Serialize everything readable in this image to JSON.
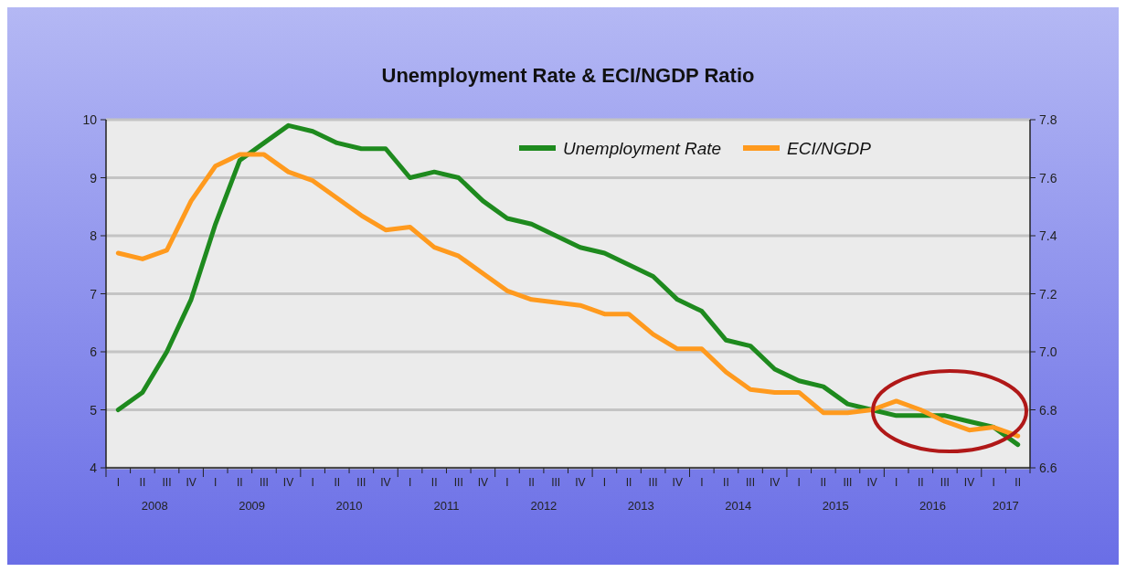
{
  "chart_data": {
    "type": "line",
    "title": "Unemployment Rate & ECI/NGDP Ratio",
    "grid": "y",
    "legend": "top right",
    "categories": [
      "I",
      "II",
      "III",
      "IV",
      "I",
      "II",
      "III",
      "IV",
      "I",
      "II",
      "III",
      "IV",
      "I",
      "II",
      "III",
      "IV",
      "I",
      "II",
      "III",
      "IV",
      "I",
      "II",
      "III",
      "IV",
      "I",
      "II",
      "III",
      "IV",
      "I",
      "II",
      "III",
      "IV",
      "I",
      "II",
      "III",
      "IV",
      "I",
      "II"
    ],
    "annotations": [
      "2008",
      "2009",
      "2010",
      "2011",
      "2012",
      "2013",
      "2014",
      "2015",
      "2016",
      "2017"
    ],
    "ylim": [
      4,
      10
    ],
    "yticks": [
      4,
      5,
      6,
      7,
      8,
      9,
      10
    ],
    "y2lim": [
      6.6,
      7.8
    ],
    "y2ticks": [
      {
        "value": 6.6,
        "label": "6.6"
      },
      {
        "value": 6.8,
        "label": "6.8"
      },
      {
        "value": 7,
        "label": "7.0"
      },
      {
        "value": 7.2,
        "label": "7.2"
      },
      {
        "value": 7.4,
        "label": "7.4"
      },
      {
        "value": 7.6,
        "label": "7.6"
      },
      {
        "value": 7.8,
        "label": "7.8"
      }
    ],
    "series": [
      {
        "name": "Unemployment Rate",
        "color": "#1e8a1e",
        "values": [
          5.0,
          5.3,
          6.0,
          6.9,
          8.2,
          9.3,
          9.6,
          9.9,
          9.8,
          9.6,
          9.5,
          9.5,
          9.0,
          9.1,
          9.0,
          8.6,
          8.3,
          8.2,
          8.0,
          7.8,
          7.7,
          7.5,
          7.3,
          6.9,
          6.7,
          6.2,
          6.1,
          5.7,
          5.5,
          5.4,
          5.1,
          5.0,
          4.9,
          4.9,
          4.9,
          4.8,
          4.7,
          4.4
        ]
      },
      {
        "name": "ECI/NGDP",
        "color": "#ff9a1e",
        "axis": "y2",
        "values": [
          7.34,
          7.32,
          7.35,
          7.52,
          7.64,
          7.68,
          7.68,
          7.62,
          7.59,
          7.53,
          7.47,
          7.42,
          7.43,
          7.36,
          7.33,
          7.27,
          7.21,
          7.18,
          7.17,
          7.16,
          7.13,
          7.13,
          7.06,
          7.01,
          7.01,
          6.93,
          6.87,
          6.86,
          6.86,
          6.79,
          6.79,
          6.8,
          6.83,
          6.8,
          6.76,
          6.73,
          6.74,
          6.71
        ]
      }
    ]
  }
}
